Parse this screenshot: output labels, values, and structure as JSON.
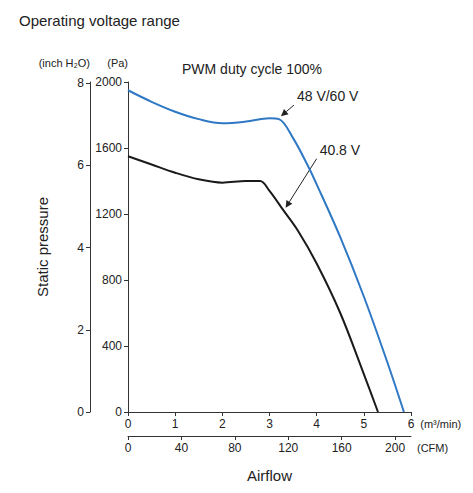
{
  "chart_data": {
    "type": "line",
    "title": "Operating voltage range",
    "subtitle": "PWM duty cycle 100%",
    "xlabel": "Airflow",
    "ylabel": "Static pressure",
    "xunit": "(m³/min)",
    "x2unit": "(CFM)",
    "yunit": "(Pa)",
    "y2unit": "(inch H₂O)",
    "xlim": [
      0,
      6
    ],
    "xticks": [
      0,
      1,
      2,
      3,
      4,
      5,
      6
    ],
    "x2lim": [
      0,
      211.89
    ],
    "x2ticks": [
      0,
      40,
      80,
      120,
      160,
      200
    ],
    "ylim": [
      0,
      2000
    ],
    "yticks": [
      0,
      400,
      800,
      1200,
      1600,
      2000
    ],
    "y2lim": [
      0,
      8.03
    ],
    "y2ticks": [
      0,
      2,
      4,
      6,
      8
    ],
    "grid": false,
    "series": [
      {
        "name": "48 V/60 V",
        "color": "#2f78c4",
        "line_style": "solid",
        "x": [
          0,
          0.5,
          1,
          1.5,
          2,
          2.5,
          3,
          3.2,
          3.5,
          3.8,
          4,
          4.5,
          5,
          5.5,
          5.85
        ],
        "values": [
          1950,
          1880,
          1820,
          1775,
          1750,
          1760,
          1780,
          1775,
          1660,
          1500,
          1380,
          1060,
          700,
          300,
          0
        ]
      },
      {
        "name": "40.8 V",
        "color": "#1a1a1a",
        "line_style": "solid",
        "x": [
          0,
          0.5,
          1,
          1.5,
          2,
          2.5,
          2.8,
          3,
          3.3,
          3.6,
          4,
          4.5,
          5,
          5.3
        ],
        "values": [
          1550,
          1500,
          1450,
          1410,
          1390,
          1400,
          1400,
          1340,
          1220,
          1100,
          900,
          600,
          230,
          0
        ]
      }
    ]
  }
}
